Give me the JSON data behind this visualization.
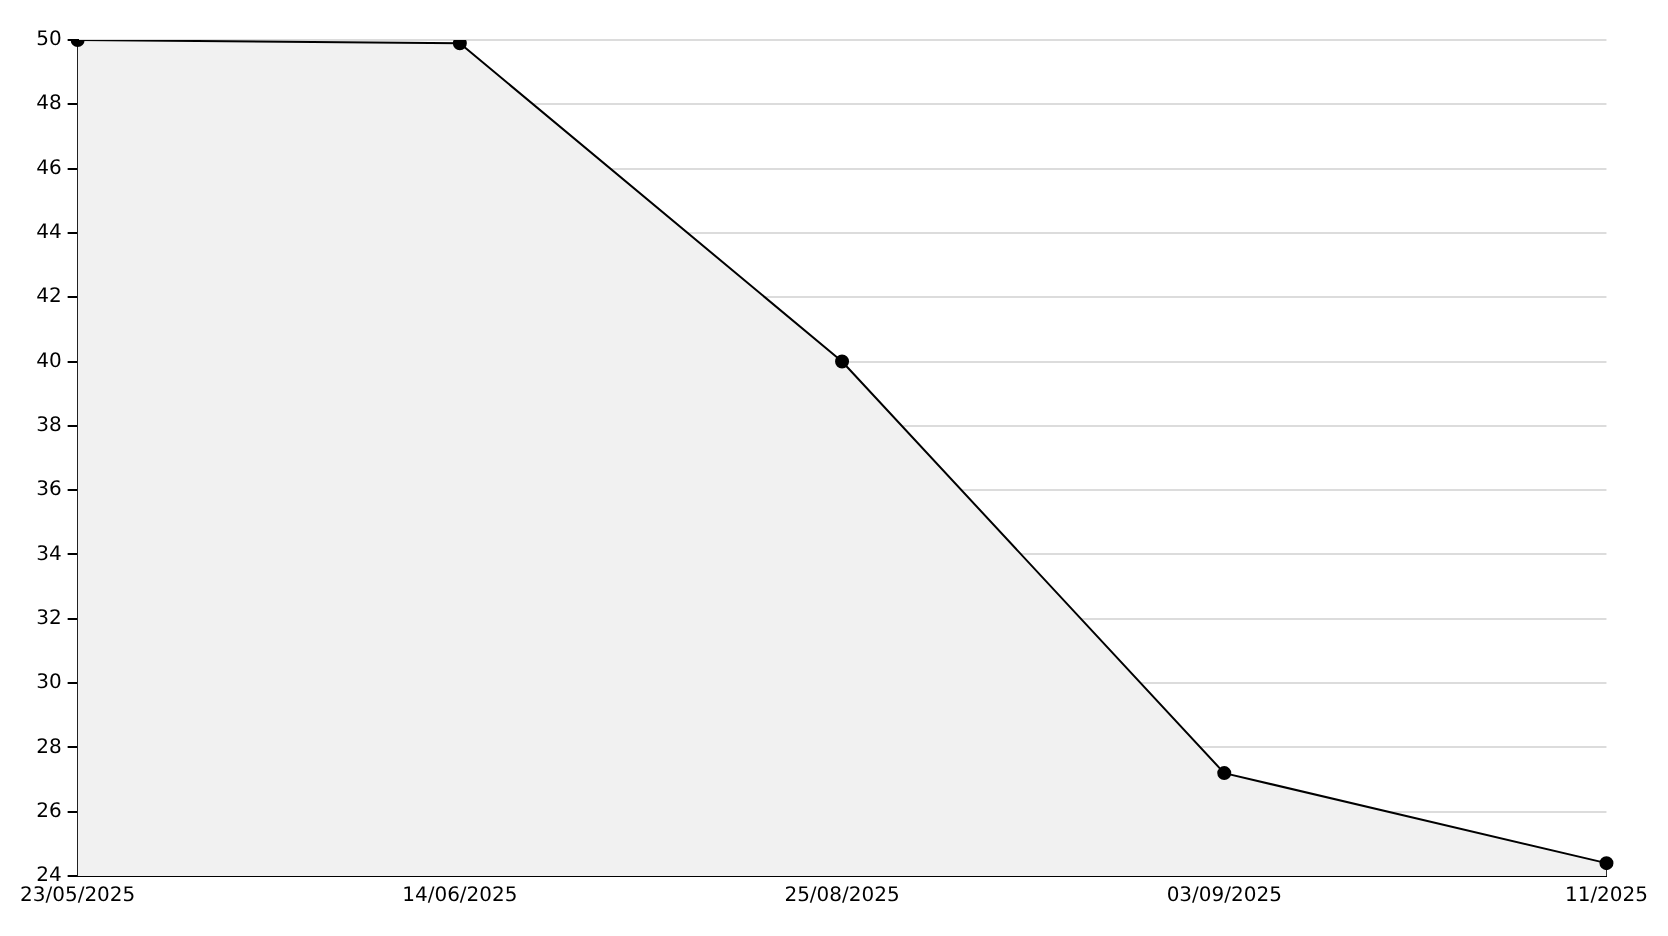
{
  "chart_data": {
    "type": "area",
    "categories": [
      "23/05/2025",
      "14/06/2025",
      "25/08/2025",
      "03/09/2025",
      "11/2025"
    ],
    "values": [
      50,
      49.9,
      40,
      27.2,
      24.4
    ],
    "color": "#000000",
    "ylim": [
      24,
      50
    ],
    "yticks": [
      24,
      26,
      28,
      30,
      32,
      34,
      36,
      38,
      40,
      42,
      44,
      46,
      48,
      50
    ],
    "grid": "y",
    "marker": "circle",
    "legend": false
  }
}
